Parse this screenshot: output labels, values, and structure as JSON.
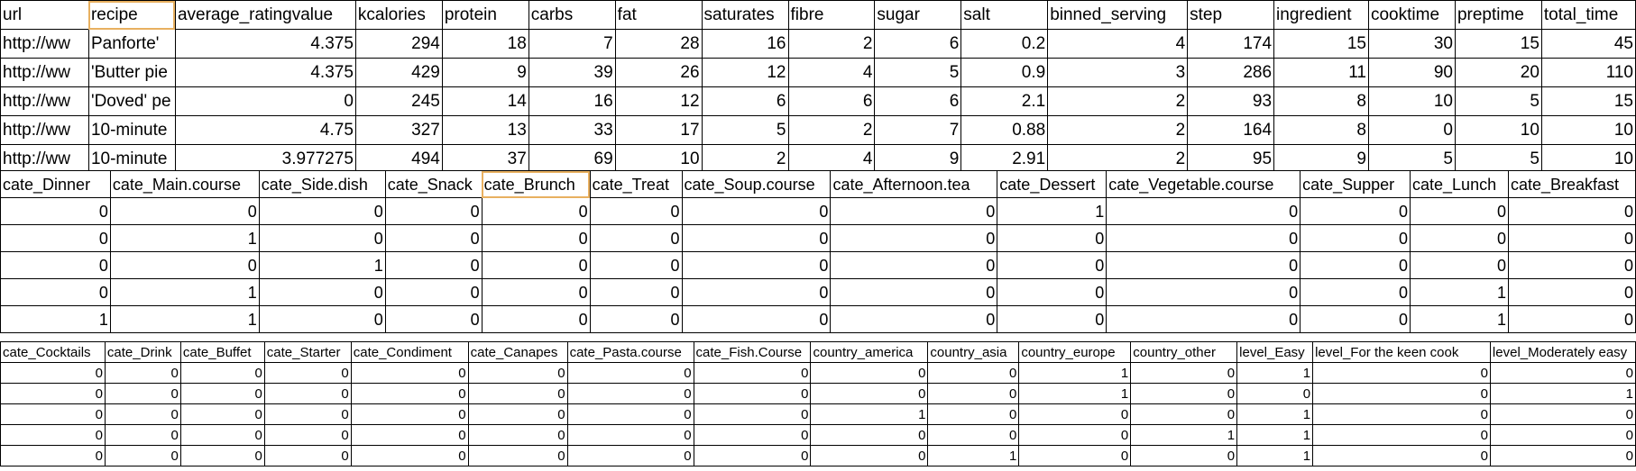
{
  "table1": {
    "columns": [
      "url",
      "recipe",
      "average_ratingvalue",
      "kcalories",
      "protein",
      "carbs",
      "fat",
      "saturates",
      "fibre",
      "sugar",
      "salt",
      "binned_serving",
      "step",
      "ingredient",
      "cooktime",
      "preptime",
      "total_time"
    ],
    "rows": [
      [
        "http://ww",
        "Panforte'",
        "4.375",
        "294",
        "18",
        "7",
        "28",
        "16",
        "2",
        "6",
        "0.2",
        "4",
        "174",
        "15",
        "30",
        "15",
        "45"
      ],
      [
        "http://ww",
        "'Butter pie",
        "4.375",
        "429",
        "9",
        "39",
        "26",
        "12",
        "4",
        "5",
        "0.9",
        "3",
        "286",
        "11",
        "90",
        "20",
        "110"
      ],
      [
        "http://ww",
        "'Doved' pe",
        "0",
        "245",
        "14",
        "16",
        "12",
        "6",
        "6",
        "6",
        "2.1",
        "2",
        "93",
        "8",
        "10",
        "5",
        "15"
      ],
      [
        "http://ww",
        "10-minute",
        "4.75",
        "327",
        "13",
        "33",
        "17",
        "5",
        "2",
        "7",
        "0.88",
        "2",
        "164",
        "8",
        "0",
        "10",
        "10"
      ],
      [
        "http://ww",
        "10-minute",
        "3.977275",
        "494",
        "37",
        "69",
        "10",
        "2",
        "4",
        "9",
        "2.91",
        "2",
        "95",
        "9",
        "5",
        "5",
        "10"
      ]
    ]
  },
  "table2": {
    "columns": [
      "cate_Dinner",
      "cate_Main.course",
      "cate_Side.dish",
      "cate_Snack",
      "cate_Brunch",
      "cate_Treat",
      "cate_Soup.course",
      "cate_Afternoon.tea",
      "cate_Dessert",
      "cate_Vegetable.course",
      "cate_Supper",
      "cate_Lunch",
      "cate_Breakfast"
    ],
    "rows": [
      [
        "0",
        "0",
        "0",
        "0",
        "0",
        "0",
        "0",
        "0",
        "1",
        "0",
        "0",
        "0",
        "0"
      ],
      [
        "0",
        "1",
        "0",
        "0",
        "0",
        "0",
        "0",
        "0",
        "0",
        "0",
        "0",
        "0",
        "0"
      ],
      [
        "0",
        "0",
        "1",
        "0",
        "0",
        "0",
        "0",
        "0",
        "0",
        "0",
        "0",
        "0",
        "0"
      ],
      [
        "0",
        "1",
        "0",
        "0",
        "0",
        "0",
        "0",
        "0",
        "0",
        "0",
        "0",
        "1",
        "0"
      ],
      [
        "1",
        "1",
        "0",
        "0",
        "0",
        "0",
        "0",
        "0",
        "0",
        "0",
        "0",
        "1",
        "0"
      ]
    ]
  },
  "table3": {
    "columns": [
      "cate_Cocktails",
      "cate_Drink",
      "cate_Buffet",
      "cate_Starter",
      "cate_Condiment",
      "cate_Canapes",
      "cate_Pasta.course",
      "cate_Fish.Course",
      "country_america",
      "country_asia",
      "country_europe",
      "country_other",
      "level_Easy",
      "level_For the keen cook",
      "level_Moderately easy"
    ],
    "rows": [
      [
        "0",
        "0",
        "0",
        "0",
        "0",
        "0",
        "0",
        "0",
        "0",
        "0",
        "1",
        "0",
        "1",
        "0",
        "0"
      ],
      [
        "0",
        "0",
        "0",
        "0",
        "0",
        "0",
        "0",
        "0",
        "0",
        "0",
        "1",
        "0",
        "0",
        "0",
        "1"
      ],
      [
        "0",
        "0",
        "0",
        "0",
        "0",
        "0",
        "0",
        "0",
        "1",
        "0",
        "0",
        "0",
        "1",
        "0",
        "0"
      ],
      [
        "0",
        "0",
        "0",
        "0",
        "0",
        "0",
        "0",
        "0",
        "0",
        "0",
        "0",
        "1",
        "1",
        "0",
        "0"
      ],
      [
        "0",
        "0",
        "0",
        "0",
        "0",
        "0",
        "0",
        "0",
        "0",
        "1",
        "0",
        "0",
        "1",
        "0",
        "0"
      ]
    ]
  }
}
